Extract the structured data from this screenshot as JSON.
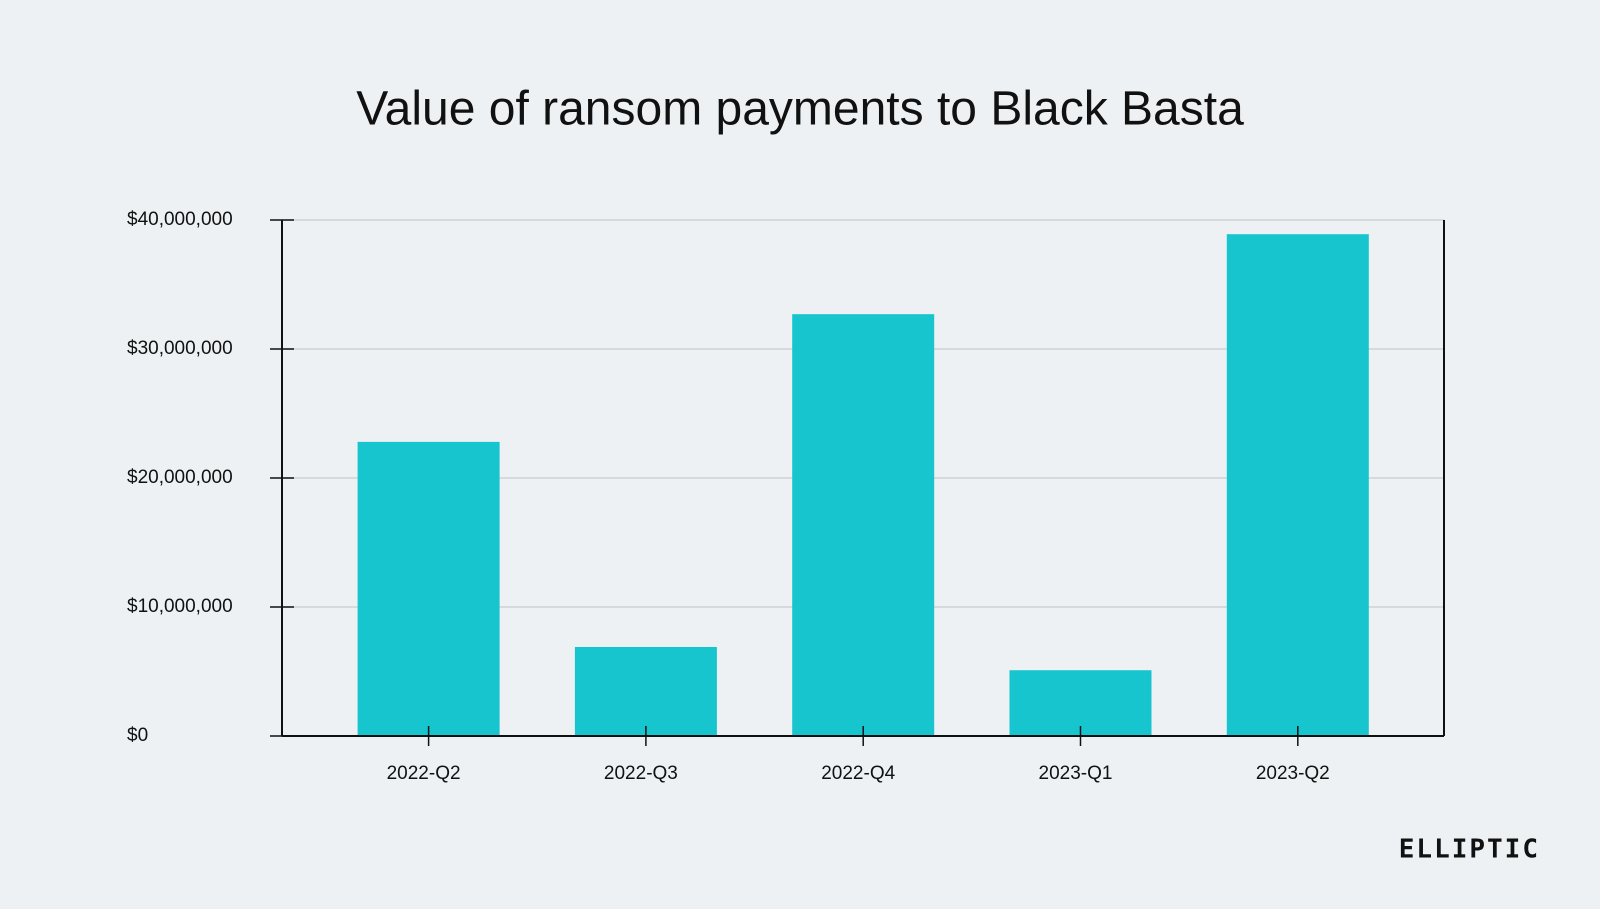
{
  "chart_data": {
    "type": "bar",
    "title": "Value of ransom payments to Black Basta",
    "categories": [
      "2022-Q2",
      "2022-Q3",
      "2022-Q4",
      "2023-Q1",
      "2023-Q2"
    ],
    "values": [
      22800000,
      6900000,
      32700000,
      5100000,
      38900000
    ],
    "color": "#17c5ce",
    "ylim": [
      0,
      40000000
    ],
    "yticks": [
      {
        "value": 0,
        "label": "$0"
      },
      {
        "value": 10000000,
        "label": "$10,000,000"
      },
      {
        "value": 20000000,
        "label": "$20,000,000"
      },
      {
        "value": 30000000,
        "label": "$30,000,000"
      },
      {
        "value": 40000000,
        "label": "$40,000,000"
      }
    ],
    "grid": true
  },
  "brand": "ELLIPTIC"
}
